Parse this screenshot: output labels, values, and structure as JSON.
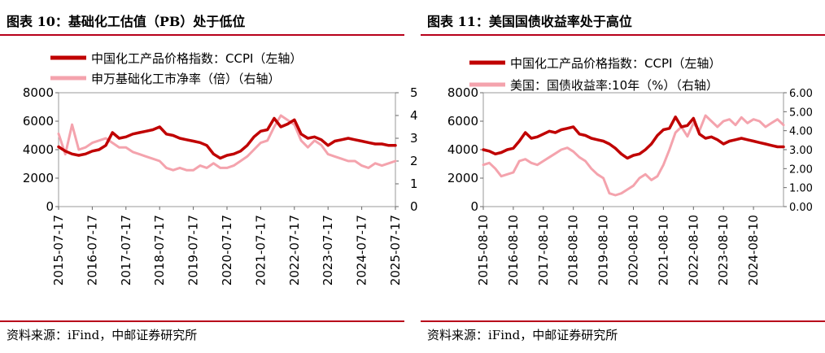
{
  "colors": {
    "rule": "#b8001a",
    "ccpi": "#c00000",
    "secondary": "#f4a3ad"
  },
  "left": {
    "title": "图表 10：基础化工估值（PB）处于低位",
    "source": "资料来源：iFind，中邮证券研究所"
  },
  "right": {
    "title": "图表 11：美国国债收益率处于高位",
    "source": "资料来源：iFind，中邮证券研究所"
  },
  "chart_data": [
    {
      "type": "line",
      "title": "图表 10：基础化工估值（PB）处于低位",
      "x_labels": [
        "2015-07-17",
        "2016-07-17",
        "2017-07-17",
        "2018-07-17",
        "2019-07-17",
        "2020-07-17",
        "2021-07-17",
        "2022-07-17",
        "2023-07-17",
        "2024-07-17",
        "2025-07-17"
      ],
      "y_left": {
        "min": 0,
        "max": 8000,
        "ticks": [
          "0",
          "2000",
          "4000",
          "6000",
          "8000"
        ]
      },
      "y_right": {
        "min": 0,
        "max": 5,
        "ticks": [
          "0",
          "1",
          "2",
          "3",
          "4",
          "5"
        ]
      },
      "series": [
        {
          "name": "中国化工产品价格指数：CCPI（左轴）",
          "axis": "left",
          "x": [
            0,
            0.2,
            0.4,
            0.6,
            0.8,
            1.0,
            1.2,
            1.4,
            1.6,
            1.8,
            2.0,
            2.2,
            2.4,
            2.6,
            2.8,
            3.0,
            3.2,
            3.4,
            3.6,
            3.8,
            4.0,
            4.2,
            4.4,
            4.6,
            4.8,
            5.0,
            5.2,
            5.4,
            5.6,
            5.8,
            6.0,
            6.2,
            6.4,
            6.6,
            6.8,
            7.0,
            7.2,
            7.4,
            7.6,
            7.8,
            8.0,
            8.2,
            8.4,
            8.6,
            8.8,
            9.0,
            9.2,
            9.4,
            9.6,
            9.8,
            10.0
          ],
          "values": [
            4200,
            3900,
            3700,
            3600,
            3700,
            3900,
            4000,
            4300,
            5200,
            4800,
            4900,
            5100,
            5200,
            5300,
            5400,
            5600,
            5100,
            5000,
            4800,
            4700,
            4600,
            4500,
            4300,
            3700,
            3400,
            3600,
            3700,
            3900,
            4300,
            4900,
            5300,
            5400,
            6200,
            5600,
            5800,
            6100,
            5100,
            4800,
            4900,
            4700,
            4300,
            4600,
            4700,
            4800,
            4700,
            4600,
            4500,
            4400,
            4400,
            4300,
            4300
          ]
        },
        {
          "name": "申万基础化工市净率（倍）（右轴）",
          "axis": "right",
          "x": [
            0,
            0.2,
            0.4,
            0.6,
            0.8,
            1.0,
            1.2,
            1.4,
            1.6,
            1.8,
            2.0,
            2.2,
            2.4,
            2.6,
            2.8,
            3.0,
            3.2,
            3.4,
            3.6,
            3.8,
            4.0,
            4.2,
            4.4,
            4.6,
            4.8,
            5.0,
            5.2,
            5.4,
            5.6,
            5.8,
            6.0,
            6.2,
            6.4,
            6.6,
            6.8,
            7.0,
            7.2,
            7.4,
            7.6,
            7.8,
            8.0,
            8.2,
            8.4,
            8.6,
            8.8,
            9.0,
            9.2,
            9.4,
            9.6,
            9.8,
            10.0
          ],
          "values": [
            3.2,
            2.3,
            3.6,
            2.5,
            2.6,
            2.8,
            2.9,
            3.0,
            2.8,
            2.6,
            2.6,
            2.4,
            2.3,
            2.2,
            2.1,
            2.0,
            1.7,
            1.6,
            1.7,
            1.6,
            1.6,
            1.8,
            1.7,
            1.9,
            1.7,
            1.7,
            1.8,
            2.0,
            2.2,
            2.5,
            2.8,
            2.9,
            3.5,
            4.0,
            3.8,
            3.6,
            2.9,
            2.6,
            2.9,
            2.7,
            2.3,
            2.2,
            2.1,
            2.0,
            2.0,
            1.8,
            1.7,
            1.9,
            1.8,
            1.9,
            2.0
          ]
        }
      ]
    },
    {
      "type": "line",
      "title": "图表 11：美国国债收益率处于高位",
      "x_labels": [
        "2015-08-10",
        "2016-08-10",
        "2017-08-10",
        "2018-08-10",
        "2019-08-10",
        "2020-08-10",
        "2021-08-10",
        "2022-08-10",
        "2023-08-10",
        "2024-08-10"
      ],
      "y_left": {
        "min": 0,
        "max": 8000,
        "ticks": [
          "0",
          "2000",
          "4000",
          "6000",
          "8000"
        ]
      },
      "y_right": {
        "min": 0,
        "max": 6,
        "ticks": [
          "0.00",
          "1.00",
          "2.00",
          "3.00",
          "4.00",
          "5.00",
          "6.00"
        ]
      },
      "series": [
        {
          "name": "中国化工产品价格指数：CCPI（左轴）",
          "axis": "left",
          "x": [
            0,
            0.2,
            0.4,
            0.6,
            0.8,
            1.0,
            1.2,
            1.4,
            1.6,
            1.8,
            2.0,
            2.2,
            2.4,
            2.6,
            2.8,
            3.0,
            3.2,
            3.4,
            3.6,
            3.8,
            4.0,
            4.2,
            4.4,
            4.6,
            4.8,
            5.0,
            5.2,
            5.4,
            5.6,
            5.8,
            6.0,
            6.2,
            6.4,
            6.6,
            6.8,
            7.0,
            7.2,
            7.4,
            7.6,
            7.8,
            8.0,
            8.2,
            8.4,
            8.6,
            8.8,
            9.0,
            9.2,
            9.4,
            9.6,
            9.8,
            10.0
          ],
          "values": [
            4000,
            3900,
            3700,
            3800,
            4000,
            4100,
            4600,
            5200,
            4800,
            4900,
            5100,
            5300,
            5200,
            5400,
            5500,
            5600,
            5100,
            5000,
            4800,
            4700,
            4600,
            4400,
            4100,
            3700,
            3400,
            3600,
            3700,
            4000,
            4400,
            5000,
            5400,
            5500,
            6300,
            5600,
            5700,
            6200,
            5100,
            4800,
            4900,
            4700,
            4400,
            4600,
            4700,
            4800,
            4700,
            4600,
            4500,
            4400,
            4300,
            4200,
            4200
          ]
        },
        {
          "name": "美国：国债收益率:10年（%）（右轴）",
          "axis": "right",
          "x": [
            0,
            0.2,
            0.4,
            0.6,
            0.8,
            1.0,
            1.2,
            1.4,
            1.6,
            1.8,
            2.0,
            2.2,
            2.4,
            2.6,
            2.8,
            3.0,
            3.2,
            3.4,
            3.6,
            3.8,
            4.0,
            4.2,
            4.4,
            4.6,
            4.8,
            5.0,
            5.2,
            5.4,
            5.6,
            5.8,
            6.0,
            6.2,
            6.4,
            6.6,
            6.8,
            7.0,
            7.2,
            7.4,
            7.6,
            7.8,
            8.0,
            8.2,
            8.4,
            8.6,
            8.8,
            9.0,
            9.2,
            9.4,
            9.6,
            9.8,
            10.0
          ],
          "values": [
            2.2,
            2.3,
            2.0,
            1.6,
            1.7,
            1.8,
            2.4,
            2.5,
            2.3,
            2.2,
            2.4,
            2.6,
            2.8,
            3.0,
            3.1,
            2.9,
            2.6,
            2.4,
            2.0,
            1.7,
            1.5,
            0.7,
            0.6,
            0.7,
            0.9,
            1.1,
            1.5,
            1.7,
            1.4,
            1.6,
            2.2,
            3.0,
            3.9,
            4.2,
            3.7,
            4.4,
            4.0,
            4.8,
            4.5,
            4.2,
            4.5,
            4.6,
            4.3,
            4.7,
            4.4,
            4.6,
            4.5,
            4.2,
            4.4,
            4.6,
            4.3
          ]
        }
      ]
    }
  ]
}
